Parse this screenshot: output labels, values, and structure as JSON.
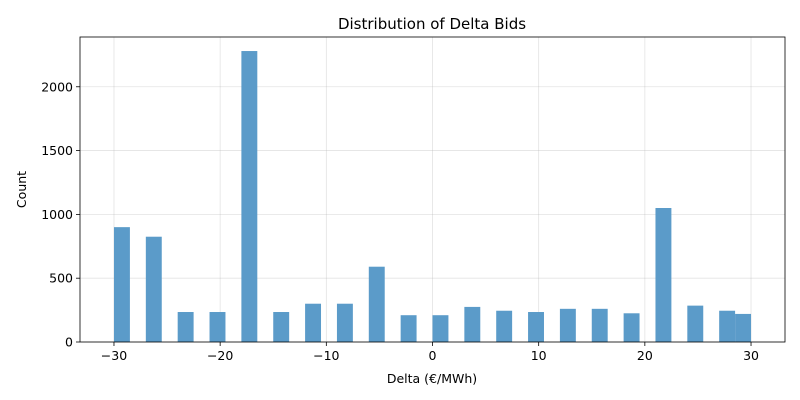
{
  "chart_data": {
    "type": "bar",
    "title": "Distribution of Delta Bids",
    "xlabel": "Delta (€/MWh)",
    "ylabel": "Count",
    "xlim": [
      -33.2,
      33.2
    ],
    "ylim": [
      0,
      2390
    ],
    "grid": true,
    "bar_color": "#5b9bc9",
    "bin_width": 1.5,
    "x_ticks": [
      -30,
      -20,
      -10,
      0,
      10,
      20,
      30
    ],
    "x_tick_labels": [
      "−30",
      "−20",
      "−10",
      "0",
      "10",
      "20",
      "30"
    ],
    "y_ticks": [
      0,
      500,
      1000,
      1500,
      2000
    ],
    "y_tick_labels": [
      "0",
      "500",
      "1000",
      "1500",
      "2000"
    ],
    "bins": [
      {
        "x": -29.25,
        "count": 900
      },
      {
        "x": -26.25,
        "count": 825
      },
      {
        "x": -23.25,
        "count": 235
      },
      {
        "x": -20.25,
        "count": 235
      },
      {
        "x": -17.25,
        "count": 2280
      },
      {
        "x": -14.25,
        "count": 235
      },
      {
        "x": -11.25,
        "count": 300
      },
      {
        "x": -8.25,
        "count": 300
      },
      {
        "x": -5.25,
        "count": 590
      },
      {
        "x": -2.25,
        "count": 210
      },
      {
        "x": 0.75,
        "count": 210
      },
      {
        "x": 3.75,
        "count": 275
      },
      {
        "x": 6.75,
        "count": 245
      },
      {
        "x": 9.75,
        "count": 235
      },
      {
        "x": 12.75,
        "count": 260
      },
      {
        "x": 15.75,
        "count": 260
      },
      {
        "x": 18.75,
        "count": 225
      },
      {
        "x": 21.75,
        "count": 1050
      },
      {
        "x": 24.75,
        "count": 285
      },
      {
        "x": 27.75,
        "count": 245
      },
      {
        "x": 29.25,
        "count": 220
      }
    ]
  }
}
